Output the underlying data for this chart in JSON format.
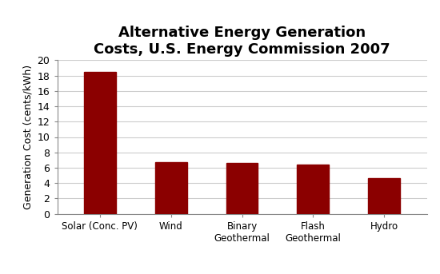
{
  "title": "Alternative Energy Generation\nCosts, U.S. Energy Commission 2007",
  "categories": [
    "Solar (Conc. PV)",
    "Wind",
    "Binary\nGeothermal",
    "Flash\nGeothermal",
    "Hydro"
  ],
  "values": [
    18.5,
    6.7,
    6.6,
    6.4,
    4.6
  ],
  "bar_color": "#8b0000",
  "ylabel": "Generation Cost (cents/kWh)",
  "ylim": [
    0,
    20
  ],
  "yticks": [
    0,
    2,
    4,
    6,
    8,
    10,
    12,
    14,
    16,
    18,
    20
  ],
  "title_fontsize": 13,
  "ylabel_fontsize": 9,
  "tick_fontsize": 9,
  "xtick_fontsize": 8.5,
  "bar_width": 0.45,
  "background_color": "#ffffff",
  "grid_color": "#cccccc"
}
